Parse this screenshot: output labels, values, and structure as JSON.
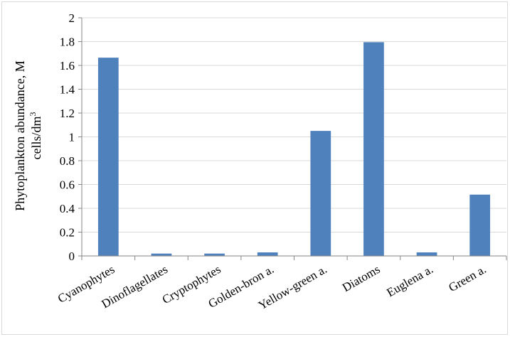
{
  "chart_data": {
    "type": "bar",
    "categories": [
      "Cyanophytes",
      "Dinoflagellates",
      "Cryptophytes",
      "Golden-bron a.",
      "Yellow-green a.",
      "Diatoms",
      "Euglena a.",
      "Green a."
    ],
    "values": [
      1.665,
      0.02,
      0.02,
      0.03,
      1.05,
      1.795,
      0.03,
      0.515
    ],
    "ylabel_line1": "Phytoplankton abundance, M",
    "ylabel_line2": "cells/dm",
    "ylabel_superscript": "3",
    "ylim": [
      0,
      2
    ],
    "yticks": [
      "0",
      "0.2",
      "0.4",
      "0.6",
      "0.8",
      "1",
      "1.2",
      "1.4",
      "1.6",
      "1.8",
      "2"
    ],
    "grid": true,
    "legend": "none",
    "bar_color": "#4f81bd",
    "grid_color": "#d9d9d9"
  }
}
